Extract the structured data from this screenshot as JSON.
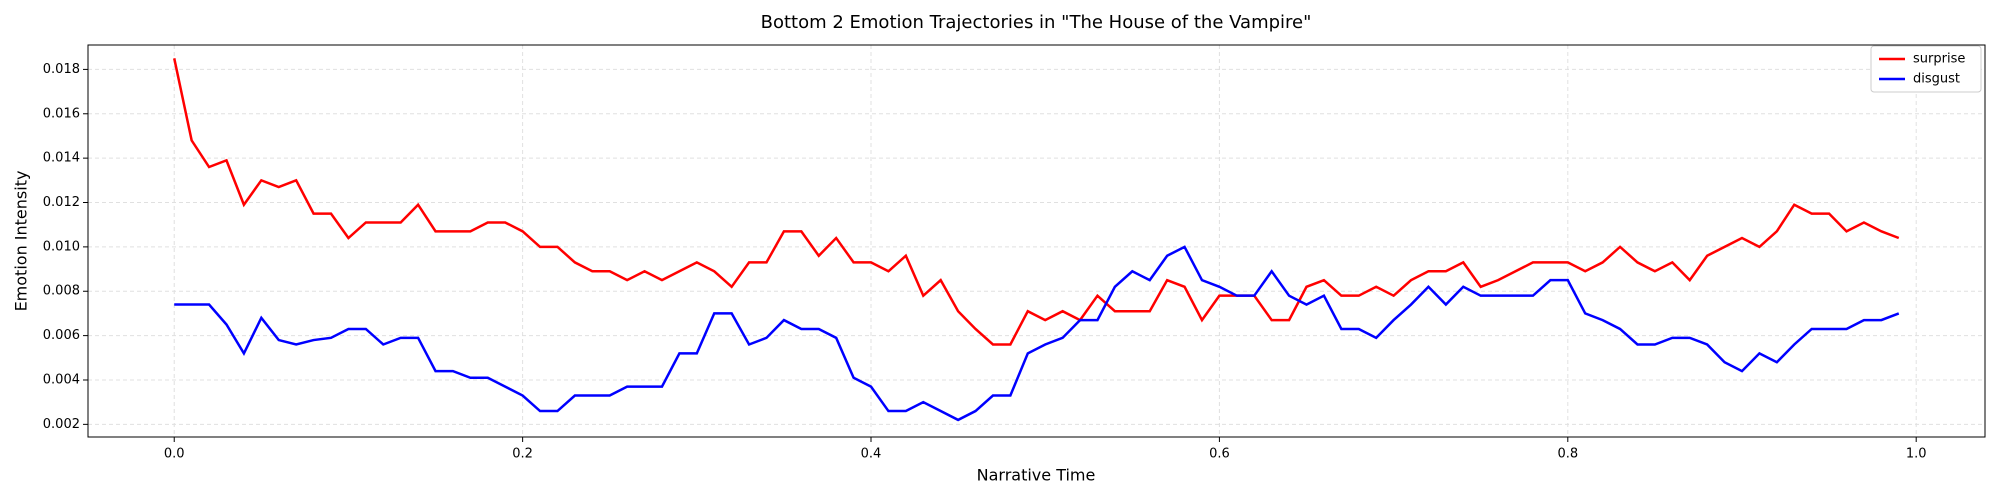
{
  "chart_data": {
    "type": "line",
    "title": "Bottom 2 Emotion Trajectories in \"The House of the Vampire\"",
    "x_label": "Narrative Time",
    "y_label": "Emotion Intensity",
    "x": [
      0,
      0.01,
      0.02,
      0.03,
      0.04,
      0.05,
      0.06,
      0.07,
      0.08,
      0.09,
      0.1,
      0.11,
      0.12,
      0.13,
      0.14,
      0.15,
      0.16,
      0.17,
      0.18,
      0.19,
      0.2,
      0.21,
      0.22,
      0.23,
      0.24,
      0.25,
      0.26,
      0.27,
      0.28,
      0.29,
      0.3,
      0.31,
      0.32,
      0.33,
      0.34,
      0.35,
      0.36,
      0.37,
      0.38,
      0.39,
      0.4,
      0.41,
      0.42,
      0.43,
      0.44,
      0.45,
      0.46,
      0.47,
      0.48,
      0.49,
      0.5,
      0.51,
      0.52,
      0.53,
      0.54,
      0.55,
      0.56,
      0.57,
      0.58,
      0.59,
      0.6,
      0.61,
      0.62,
      0.63,
      0.64,
      0.65,
      0.66,
      0.67,
      0.68,
      0.69,
      0.7,
      0.71,
      0.72,
      0.73,
      0.74,
      0.75,
      0.76,
      0.77,
      0.78,
      0.79,
      0.8,
      0.81,
      0.82,
      0.83,
      0.84,
      0.85,
      0.86,
      0.87,
      0.88,
      0.89,
      0.9,
      0.91,
      0.92,
      0.93,
      0.94,
      0.95,
      0.96,
      0.97,
      0.98,
      0.99
    ],
    "series": [
      {
        "name": "surprise",
        "color": "#ff0000",
        "values": [
          0.0185,
          0.0148,
          0.0136,
          0.0139,
          0.0119,
          0.013,
          0.0127,
          0.013,
          0.0115,
          0.0115,
          0.0104,
          0.0111,
          0.0111,
          0.0111,
          0.0119,
          0.0107,
          0.0107,
          0.0107,
          0.0111,
          0.0111,
          0.0107,
          0.01,
          0.01,
          0.0093,
          0.0089,
          0.0089,
          0.0085,
          0.0089,
          0.0085,
          0.0089,
          0.0093,
          0.0089,
          0.0082,
          0.0093,
          0.0093,
          0.0107,
          0.0107,
          0.0096,
          0.0104,
          0.0093,
          0.0093,
          0.0089,
          0.0096,
          0.0078,
          0.0085,
          0.0071,
          0.0063,
          0.0056,
          0.0056,
          0.0071,
          0.0067,
          0.0071,
          0.0067,
          0.0078,
          0.0071,
          0.0071,
          0.0071,
          0.0085,
          0.0082,
          0.0067,
          0.0078,
          0.0078,
          0.0078,
          0.0067,
          0.0067,
          0.0082,
          0.0085,
          0.0078,
          0.0078,
          0.0082,
          0.0078,
          0.0085,
          0.0089,
          0.0089,
          0.0093,
          0.0082,
          0.0085,
          0.0089,
          0.0093,
          0.0093,
          0.0093,
          0.0089,
          0.0093,
          0.01,
          0.0093,
          0.0089,
          0.0093,
          0.0085,
          0.0096,
          0.01,
          0.0104,
          0.01,
          0.0107,
          0.0119,
          0.0115,
          0.0115,
          0.0107,
          0.0111,
          0.0107,
          0.0104
        ]
      },
      {
        "name": "disgust",
        "color": "#0000ff",
        "values": [
          0.0074,
          0.0074,
          0.0074,
          0.0065,
          0.0052,
          0.0068,
          0.0058,
          0.0056,
          0.0058,
          0.0059,
          0.0063,
          0.0063,
          0.0056,
          0.0059,
          0.0059,
          0.0044,
          0.0044,
          0.0041,
          0.0041,
          0.0037,
          0.0033,
          0.0026,
          0.0026,
          0.0033,
          0.0033,
          0.0033,
          0.0037,
          0.0037,
          0.0037,
          0.0052,
          0.0052,
          0.007,
          0.007,
          0.0056,
          0.0059,
          0.0067,
          0.0063,
          0.0063,
          0.0059,
          0.0041,
          0.0037,
          0.0026,
          0.0026,
          0.003,
          0.0026,
          0.0022,
          0.0026,
          0.0033,
          0.0033,
          0.0052,
          0.0056,
          0.0059,
          0.0067,
          0.0067,
          0.0082,
          0.0089,
          0.0085,
          0.0096,
          0.01,
          0.0085,
          0.0082,
          0.0078,
          0.0078,
          0.0089,
          0.0078,
          0.0074,
          0.0078,
          0.0063,
          0.0063,
          0.0059,
          0.0067,
          0.0074,
          0.0082,
          0.0074,
          0.0082,
          0.0078,
          0.0078,
          0.0078,
          0.0078,
          0.0085,
          0.0085,
          0.007,
          0.0067,
          0.0063,
          0.0056,
          0.0056,
          0.0059,
          0.0059,
          0.0056,
          0.0048,
          0.0044,
          0.0052,
          0.0048,
          0.0056,
          0.0063,
          0.0063,
          0.0063,
          0.0067,
          0.0067,
          0.007
        ]
      }
    ],
    "xlim": [
      -0.0495,
      1.0395
    ],
    "ylim": [
      0.00143,
      0.0191
    ],
    "xticks": [
      {
        "value": 0,
        "label": "0.0"
      },
      0.2,
      0.4,
      0.6,
      0.8,
      {
        "value": 1,
        "label": "1.0"
      }
    ],
    "yticks": [
      0.002,
      0.004,
      0.006,
      0.008,
      {
        "value": 0.01,
        "label": "0.010"
      },
      0.012,
      0.014,
      0.016,
      0.018
    ],
    "grid": true,
    "legend": "upper right"
  }
}
